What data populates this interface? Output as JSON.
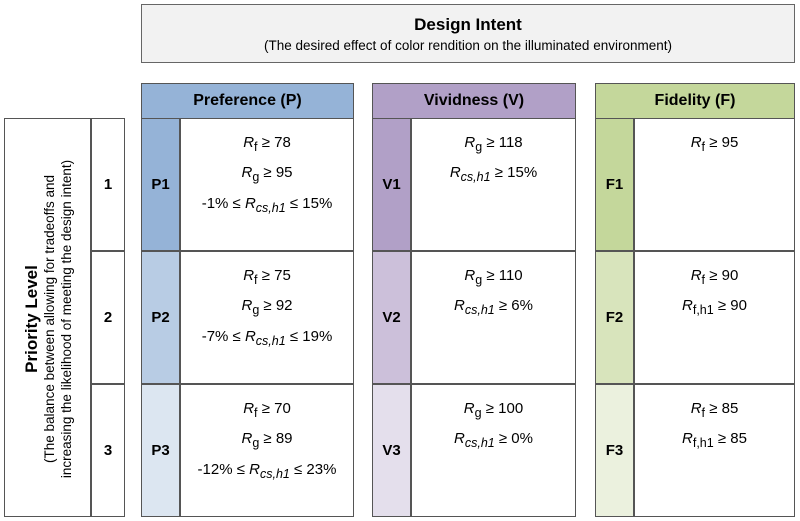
{
  "header": {
    "title": "Design Intent",
    "subtitle": "(The desired effect of color rendition on the illuminated environment)"
  },
  "priority": {
    "label": "Priority Level",
    "description_line1": "(The balance between allowing for tradeoffs and",
    "description_line2": "increasing the likelihood of meeting the design intent)",
    "levels": [
      "1",
      "2",
      "3"
    ]
  },
  "columns": [
    {
      "title": "Preference (P)",
      "colors": {
        "header": "#95b3d7",
        "c1": "#95b3d7",
        "c2": "#b8cce4",
        "c3": "#dce6f1"
      },
      "rows": [
        {
          "code": "P1",
          "lines": [
            "Rf ≥ 78",
            "Rg ≥ 95",
            "-1% ≤ Rcs,h1 ≤ 15%"
          ]
        },
        {
          "code": "P2",
          "lines": [
            "Rf ≥ 75",
            "Rg ≥ 92",
            "-7% ≤ Rcs,h1 ≤ 19%"
          ]
        },
        {
          "code": "P3",
          "lines": [
            "Rf ≥ 70",
            "Rg ≥ 89",
            "-12% ≤ Rcs,h1 ≤ 23%"
          ]
        }
      ]
    },
    {
      "title": "Vividness (V)",
      "colors": {
        "header": "#b1a0c7",
        "c1": "#b1a0c7",
        "c2": "#ccc0da",
        "c3": "#e4dfec"
      },
      "rows": [
        {
          "code": "V1",
          "lines": [
            "Rg ≥ 118",
            "Rcs,h1 ≥ 15%"
          ]
        },
        {
          "code": "V2",
          "lines": [
            "Rg ≥ 110",
            "Rcs,h1 ≥ 6%"
          ]
        },
        {
          "code": "V3",
          "lines": [
            "Rg ≥ 100",
            "Rcs,h1 ≥ 0%"
          ]
        }
      ]
    },
    {
      "title": "Fidelity (F)",
      "colors": {
        "header": "#c4d79b",
        "c1": "#c4d79b",
        "c2": "#d8e4bc",
        "c3": "#ebf1de"
      },
      "rows": [
        {
          "code": "F1",
          "lines": [
            "Rf ≥ 95"
          ]
        },
        {
          "code": "F2",
          "lines": [
            "Rf ≥ 90",
            "Rf,h1 ≥ 90"
          ]
        },
        {
          "code": "F3",
          "lines": [
            "Rf ≥ 85",
            "Rf,h1 ≥ 85"
          ]
        }
      ]
    }
  ]
}
